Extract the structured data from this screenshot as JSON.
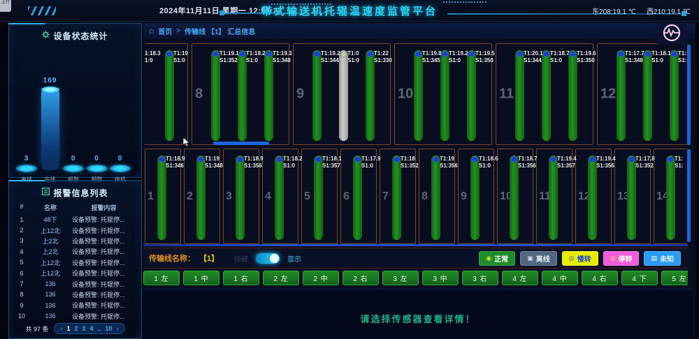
{
  "header": {
    "corner_tab": "上行",
    "datetime": "2024年11月11日 星期一 12:58:22",
    "title": "带式输送机托辊温速度监管平台",
    "temp_east": "东208:19.1 ℃",
    "temp_west": "西210:19.1 ℃"
  },
  "chart_data": {
    "type": "bar",
    "title": "设备状态统计",
    "categories": [
      "离线",
      "在线",
      "报警",
      "预警",
      "停机"
    ],
    "values": [
      3,
      169,
      0,
      0,
      0
    ],
    "ylim": [
      0,
      169
    ],
    "legend_position": "none",
    "style": "3d-cylinder, blue gradient on dark background"
  },
  "sidebar": {
    "stats_title": "设备状态统计",
    "alarms": {
      "title": "报警信息列表",
      "columns": [
        "#",
        "名称",
        "报警内容"
      ],
      "rows": [
        {
          "idx": "1",
          "name": "48下",
          "content": "设备预警: 托辊停..."
        },
        {
          "idx": "2",
          "name": "上12北",
          "content": "设备预警: 托辊停..."
        },
        {
          "idx": "3",
          "name": "上2北",
          "content": "设备预警: 托辊停..."
        },
        {
          "idx": "4",
          "name": "上2北",
          "content": "设备预警: 托辊停..."
        },
        {
          "idx": "5",
          "name": "上12北",
          "content": "设备预警: 托辊停..."
        },
        {
          "idx": "6",
          "name": "上12北",
          "content": "设备预警: 托辊停..."
        },
        {
          "idx": "7",
          "name": "13b",
          "content": "设备预警: 托辊停..."
        },
        {
          "idx": "8",
          "name": "136",
          "content": "设备预警: 托辊停..."
        },
        {
          "idx": "9",
          "name": "136",
          "content": "设备预警: 托辊停..."
        },
        {
          "idx": "10",
          "name": "136",
          "content": "设备预警: 托辊停..."
        }
      ],
      "total": "共 97 条",
      "pager": [
        "‹",
        "1",
        "2",
        "3",
        "4",
        "..",
        "10",
        "›"
      ]
    }
  },
  "main": {
    "breadcrumb": {
      "home": "首页",
      "sep": ">",
      "path": "传输线 【1】 汇总信息"
    },
    "top_panels": [
      {
        "num": "",
        "partial": true,
        "bars": [
          {
            "t": "1:18.3",
            "s": "1:0",
            "type": "cut"
          },
          {
            "t": "T1:19",
            "s": "S1:0",
            "type": "green"
          }
        ]
      },
      {
        "num": "8",
        "bars": [
          {
            "t": "T1:19.1",
            "s": "S1:352",
            "type": "green"
          },
          {
            "t": "T1:18.2",
            "s": "S1:0",
            "type": "green"
          },
          {
            "t": "T1:19.3",
            "s": "S1:348",
            "type": "green"
          }
        ]
      },
      {
        "num": "9",
        "bars": [
          {
            "t": "T1:19.2",
            "s": "S1:344",
            "type": "green"
          },
          {
            "t": "T1:0",
            "s": "S1:0",
            "type": "gray"
          },
          {
            "t": "T1:22",
            "s": "S1:330",
            "type": "green"
          }
        ]
      },
      {
        "num": "10",
        "bars": [
          {
            "t": "T1:19.8",
            "s": "S1:345",
            "type": "green"
          },
          {
            "t": "T1:19.2",
            "s": "S1:0",
            "type": "green"
          },
          {
            "t": "T1:19.5",
            "s": "S1:350",
            "type": "green"
          }
        ]
      },
      {
        "num": "11",
        "bars": [
          {
            "t": "T1:20.1",
            "s": "S1:344",
            "type": "green"
          },
          {
            "t": "T1:18.7",
            "s": "S1:0",
            "type": "green"
          },
          {
            "t": "T1:19.6",
            "s": "S1:350",
            "type": "green"
          }
        ]
      },
      {
        "num": "12",
        "bars": [
          {
            "t": "T1:17.7",
            "s": "S1:348",
            "type": "green"
          },
          {
            "t": "T1:18.1",
            "s": "S1:0",
            "type": "green"
          },
          {
            "t": "T1:19.3",
            "s": "S1:355",
            "type": "green"
          }
        ]
      }
    ],
    "bottom_panels": [
      {
        "num": "1",
        "bars": [
          {
            "t": "T1:18.9",
            "s": "S1:346",
            "type": "green"
          }
        ]
      },
      {
        "num": "2",
        "bars": [
          {
            "t": "T1:19",
            "s": "S1:348",
            "type": "green"
          }
        ]
      },
      {
        "num": "3",
        "bars": [
          {
            "t": "T1:18.9",
            "s": "S1:356",
            "type": "green"
          }
        ]
      },
      {
        "num": "4",
        "bars": [
          {
            "t": "T1:18.2",
            "s": "S1:0",
            "type": "green"
          }
        ]
      },
      {
        "num": "5",
        "bars": [
          {
            "t": "T1:18.1",
            "s": "S1:357",
            "type": "green"
          }
        ]
      },
      {
        "num": "6",
        "bars": [
          {
            "t": "T1:17.9",
            "s": "S1:0",
            "type": "green"
          }
        ]
      },
      {
        "num": "7",
        "bars": [
          {
            "t": "T1:18",
            "s": "S1:352",
            "type": "green"
          }
        ]
      },
      {
        "num": "8",
        "bars": [
          {
            "t": "T1:19",
            "s": "S1:356",
            "type": "green"
          }
        ]
      },
      {
        "num": "9",
        "bars": [
          {
            "t": "T1:18.6",
            "s": "S1:0",
            "type": "green"
          }
        ]
      },
      {
        "num": "10",
        "bars": [
          {
            "t": "T1:18.7",
            "s": "S1:356",
            "type": "green"
          }
        ]
      },
      {
        "num": "11",
        "bars": [
          {
            "t": "T1:19.4",
            "s": "S1:357",
            "type": "green"
          }
        ]
      },
      {
        "num": "12",
        "bars": [
          {
            "t": "T1:19.4",
            "s": "S1:356",
            "type": "green"
          }
        ]
      },
      {
        "num": "13",
        "bars": [
          {
            "t": "T1:17.8",
            "s": "S1:352",
            "type": "green"
          }
        ]
      },
      {
        "num": "14",
        "bars": [
          {
            "t": "T1:",
            "s": "S1:",
            "type": "green"
          }
        ]
      }
    ],
    "control": {
      "line_label": "传输线名称：",
      "line_value": "【1】",
      "hide_label": "隐藏",
      "show_label": "显示",
      "status_buttons": [
        {
          "label": "正常",
          "icon": "◉",
          "bg": "#1f8c2a",
          "fg": "#ffffff",
          "icon_color": "#c8e838"
        },
        {
          "label": "离线",
          "icon": "▣",
          "bg": "#536880",
          "fg": "#e4ecf4",
          "icon_color": "#d0dce8"
        },
        {
          "label": "慢转",
          "icon": "◎",
          "bg": "#e8ec00",
          "fg": "#2850d0",
          "icon_color": "#2850d0"
        },
        {
          "label": "停转",
          "icon": "◎",
          "bg": "#f25cd8",
          "fg": "#ffffff",
          "icon_color": "#ffe838"
        },
        {
          "label": "未知",
          "icon": "▤",
          "bg": "#2b9cf2",
          "fg": "#eaf6ff",
          "icon_color": "#ffffff"
        }
      ]
    },
    "sensor_buttons": [
      "1 左",
      "1 中",
      "1 右",
      "2 左",
      "2 中",
      "2 右",
      "3 左",
      "3 中",
      "3 右",
      "4 左",
      "4 中",
      "4 右",
      "4 下",
      "5 左",
      ""
    ],
    "message": "请选择传感器查看详情！"
  }
}
